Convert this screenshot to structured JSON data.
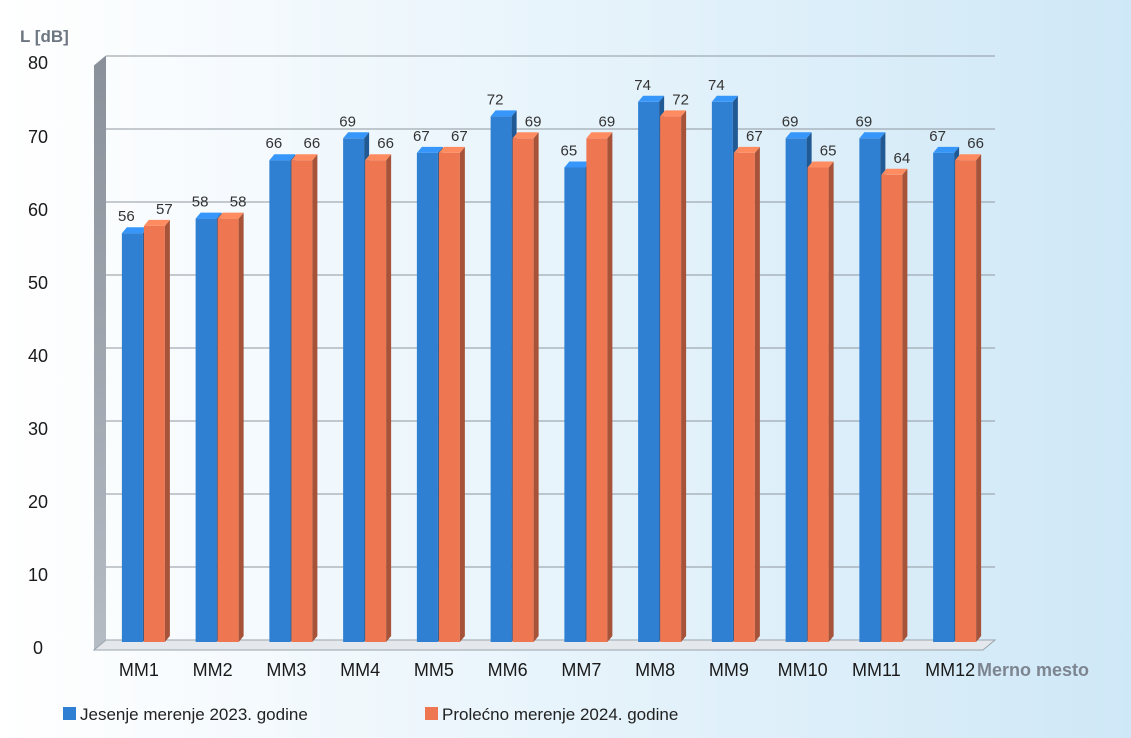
{
  "chart_data": {
    "type": "bar",
    "ylabel": "L [dB]",
    "xlabel": "Merno mesto",
    "ylim": [
      0,
      80
    ],
    "yticks": [
      0,
      10,
      20,
      30,
      40,
      50,
      60,
      70,
      80
    ],
    "grid": true,
    "legend_position": "bottom-left",
    "categories": [
      "MM1",
      "MM2",
      "MM3",
      "MM4",
      "MM5",
      "MM6",
      "MM7",
      "MM8",
      "MM9",
      "MM10",
      "MM11",
      "MM12"
    ],
    "series": [
      {
        "name": "Jesenje merenje 2023. godine",
        "color": "#2f7fd3",
        "values": [
          56,
          58,
          66,
          69,
          67,
          72,
          65,
          74,
          74,
          69,
          69,
          67
        ]
      },
      {
        "name": "Prolećno merenje 2024. godine",
        "color": "#ee7752",
        "values": [
          57,
          58,
          66,
          66,
          67,
          69,
          69,
          72,
          67,
          65,
          64,
          66
        ]
      }
    ]
  }
}
